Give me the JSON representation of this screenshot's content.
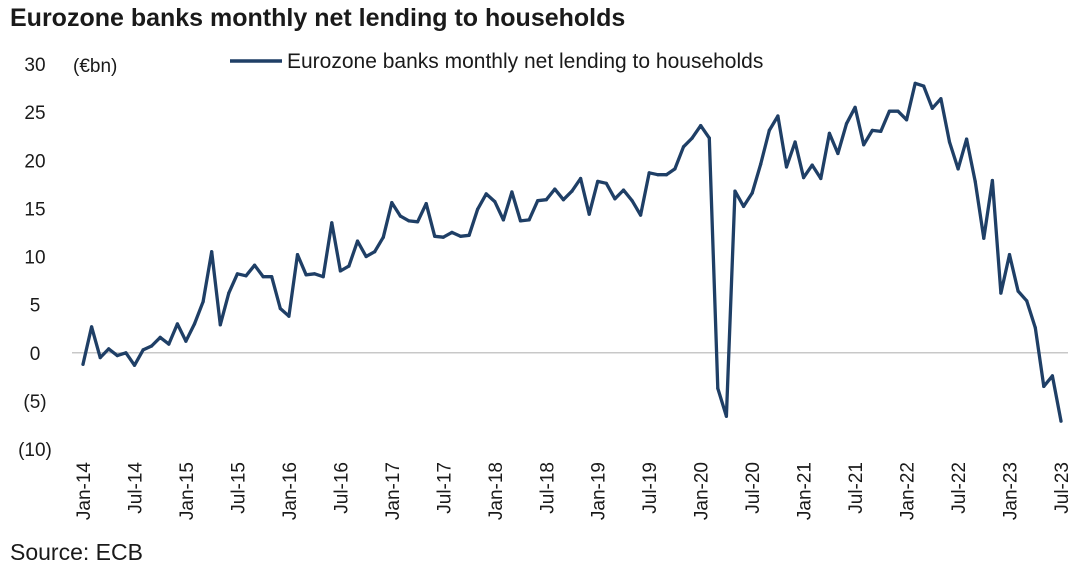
{
  "title": "Eurozone banks monthly net lending to households",
  "source": "Source: ECB",
  "colors": {
    "series": "#1f3f66",
    "zero_line": "#c8c8c8"
  },
  "chart_data": {
    "type": "line",
    "title": "Eurozone banks monthly net lending to households",
    "ylabel": "(€bn)",
    "xlabel": "",
    "ylim": [
      -10,
      30
    ],
    "yticks": [
      30,
      25,
      20,
      15,
      10,
      5,
      0,
      -5,
      -10
    ],
    "ytick_labels": [
      "30",
      "25",
      "20",
      "15",
      "10",
      "5",
      "0",
      "(5)",
      "(10)"
    ],
    "xtick_labels": [
      "Jan-14",
      "Jul-14",
      "Jan-15",
      "Jul-15",
      "Jan-16",
      "Jul-16",
      "Jan-17",
      "Jul-17",
      "Jan-18",
      "Jul-18",
      "Jan-19",
      "Jul-19",
      "Jan-20",
      "Jul-20",
      "Jan-21",
      "Jul-21",
      "Jan-22",
      "Jul-22",
      "Jan-23",
      "Jul-23"
    ],
    "grid": false,
    "legend": "top-center",
    "series": [
      {
        "name": "Eurozone banks monthly net lending to households",
        "x_start": "Jan-14",
        "frequency": "monthly",
        "values": [
          -1.2,
          2.7,
          -0.5,
          0.4,
          -0.3,
          0.0,
          -1.3,
          0.3,
          0.7,
          1.6,
          0.9,
          3.0,
          1.2,
          3.0,
          5.3,
          10.5,
          2.9,
          6.2,
          8.2,
          8.0,
          9.1,
          7.9,
          7.9,
          4.6,
          3.8,
          10.2,
          8.1,
          8.2,
          7.9,
          13.5,
          8.5,
          9.0,
          11.6,
          10.0,
          10.5,
          12.0,
          15.6,
          14.2,
          13.7,
          13.6,
          15.5,
          12.1,
          12.0,
          12.5,
          12.1,
          12.2,
          14.9,
          16.5,
          15.7,
          13.8,
          16.7,
          13.7,
          13.8,
          15.8,
          15.9,
          17.0,
          15.9,
          16.8,
          18.1,
          14.4,
          17.8,
          17.6,
          16.0,
          16.9,
          15.8,
          14.3,
          18.7,
          18.5,
          18.5,
          19.1,
          21.4,
          22.3,
          23.6,
          22.3,
          -3.7,
          -6.6,
          16.8,
          15.2,
          16.6,
          19.6,
          23.1,
          24.6,
          19.3,
          21.9,
          18.2,
          19.5,
          18.1,
          22.8,
          20.7,
          23.8,
          25.5,
          21.6,
          23.1,
          23.0,
          25.1,
          25.1,
          24.2,
          28.0,
          27.7,
          25.4,
          26.4,
          21.9,
          19.1,
          22.2,
          17.8,
          11.9,
          17.9,
          6.2,
          10.2,
          6.4,
          5.4,
          2.6,
          -3.5,
          -2.4,
          -7.1
        ]
      }
    ]
  }
}
